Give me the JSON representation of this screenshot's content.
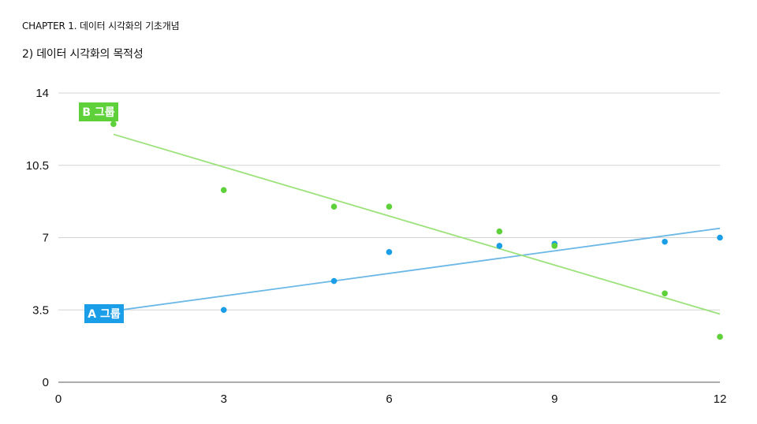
{
  "header": {
    "chapter": "CHAPTER 1. 데이터 시각화의 기초개념",
    "subtitle": "2) 데이터 시각화의 목적성"
  },
  "chart_data": {
    "type": "scatter",
    "title": "",
    "xlabel": "",
    "ylabel": "",
    "xlim": [
      0,
      12
    ],
    "ylim": [
      0,
      14
    ],
    "x_ticks": [
      0,
      3,
      6,
      9,
      12
    ],
    "y_ticks": [
      0,
      3.5,
      7,
      10.5,
      14
    ],
    "x_tick_labels": [
      "0",
      "3",
      "6",
      "9",
      "12"
    ],
    "y_tick_labels": [
      "0",
      "3.5",
      "7",
      "10.5",
      "14"
    ],
    "grid": true,
    "series": [
      {
        "name": "A 그룹",
        "color": "#1a9ee8",
        "points": [
          [
            1,
            3.4
          ],
          [
            3,
            3.5
          ],
          [
            5,
            4.9
          ],
          [
            6,
            6.3
          ],
          [
            8,
            6.6
          ],
          [
            9,
            6.7
          ],
          [
            11,
            6.8
          ],
          [
            12,
            7.0
          ]
        ],
        "trendline": [
          [
            1,
            3.45
          ],
          [
            12,
            7.45
          ]
        ]
      },
      {
        "name": "B 그룹",
        "color": "#5ed13a",
        "points": [
          [
            1,
            12.5
          ],
          [
            3,
            9.3
          ],
          [
            5,
            8.5
          ],
          [
            6,
            8.5
          ],
          [
            8,
            7.3
          ],
          [
            9,
            6.6
          ],
          [
            11,
            4.3
          ],
          [
            12,
            2.2
          ]
        ],
        "trendline": [
          [
            1,
            12.0
          ],
          [
            12,
            3.3
          ]
        ]
      }
    ],
    "trendline_colors": {
      "A 그룹": "#6bb8e6",
      "B 그룹": "#9be27a"
    }
  }
}
